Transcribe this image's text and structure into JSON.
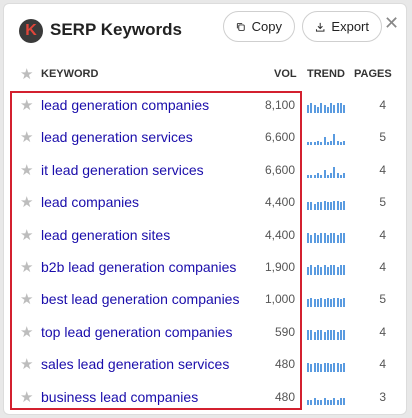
{
  "app": {
    "title": "SERP Keywords",
    "logo_letter": "K"
  },
  "toolbar": {
    "copy_label": "Copy",
    "export_label": "Export",
    "close_glyph": "✕"
  },
  "columns": {
    "keyword": "KEYWORD",
    "vol": "VOL",
    "trend": "TREND",
    "pages": "PAGES"
  },
  "rows": [
    {
      "keyword": "lead generation companies",
      "vol": "8,100",
      "pages": "4",
      "trend": [
        5,
        6,
        5,
        4,
        6,
        5,
        4,
        6,
        5,
        6,
        6,
        5
      ]
    },
    {
      "keyword": "lead generation services",
      "vol": "6,600",
      "pages": "5",
      "trend": [
        2,
        2,
        2,
        3,
        2,
        5,
        2,
        3,
        7,
        3,
        2,
        3
      ]
    },
    {
      "keyword": "it lead generation services",
      "vol": "6,600",
      "pages": "4",
      "trend": [
        2,
        2,
        2,
        3,
        2,
        5,
        2,
        3,
        7,
        3,
        2,
        3
      ]
    },
    {
      "keyword": "lead companies",
      "vol": "4,400",
      "pages": "5",
      "trend": [
        5,
        5,
        4,
        5,
        5,
        6,
        5,
        5,
        6,
        6,
        5,
        6
      ]
    },
    {
      "keyword": "lead generation sites",
      "vol": "4,400",
      "pages": "4",
      "trend": [
        6,
        5,
        6,
        5,
        6,
        6,
        5,
        6,
        6,
        5,
        6,
        6
      ]
    },
    {
      "keyword": "b2b lead generation companies",
      "vol": "1,900",
      "pages": "4",
      "trend": [
        5,
        6,
        5,
        6,
        5,
        6,
        5,
        6,
        6,
        5,
        6,
        6
      ]
    },
    {
      "keyword": "best lead generation companies",
      "vol": "1,000",
      "pages": "5",
      "trend": [
        5,
        6,
        5,
        5,
        6,
        5,
        6,
        5,
        6,
        6,
        5,
        6
      ]
    },
    {
      "keyword": "top lead generation companies",
      "vol": "590",
      "pages": "4",
      "trend": [
        6,
        6,
        5,
        6,
        6,
        5,
        6,
        6,
        6,
        5,
        6,
        6
      ]
    },
    {
      "keyword": "sales lead generation services",
      "vol": "480",
      "pages": "4",
      "trend": [
        6,
        5,
        6,
        6,
        5,
        6,
        6,
        5,
        6,
        6,
        5,
        6
      ]
    },
    {
      "keyword": "business lead companies",
      "vol": "480",
      "pages": "3",
      "trend": [
        3,
        3,
        4,
        3,
        3,
        4,
        3,
        3,
        4,
        3,
        4,
        4
      ]
    }
  ],
  "colors": {
    "accent_link": "#1a0dab",
    "trend_bar": "#5a9be0",
    "highlight": "#d3202f"
  }
}
